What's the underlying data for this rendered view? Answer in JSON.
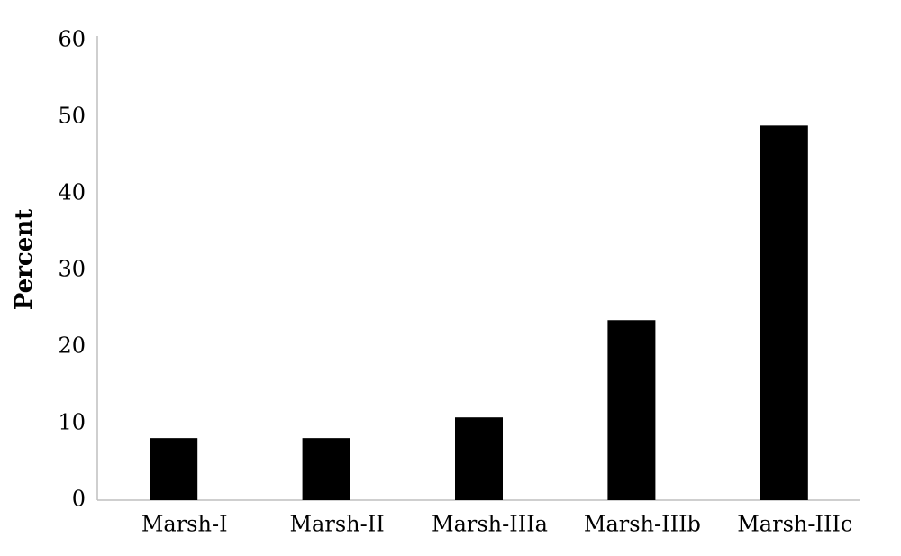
{
  "chart_data": {
    "type": "bar",
    "ylabel": "Percent",
    "categories": [
      "Marsh-I",
      "Marsh-II",
      "Marsh-IIIa",
      "Marsh-IIIb",
      "Marsh-IIIc"
    ],
    "values": [
      8.1,
      8.1,
      10.8,
      23.5,
      48.9
    ],
    "color": "#000000",
    "ylim": [
      0,
      60
    ],
    "yticks": [
      0,
      10,
      20,
      30,
      40,
      50,
      60
    ],
    "grid": false
  }
}
